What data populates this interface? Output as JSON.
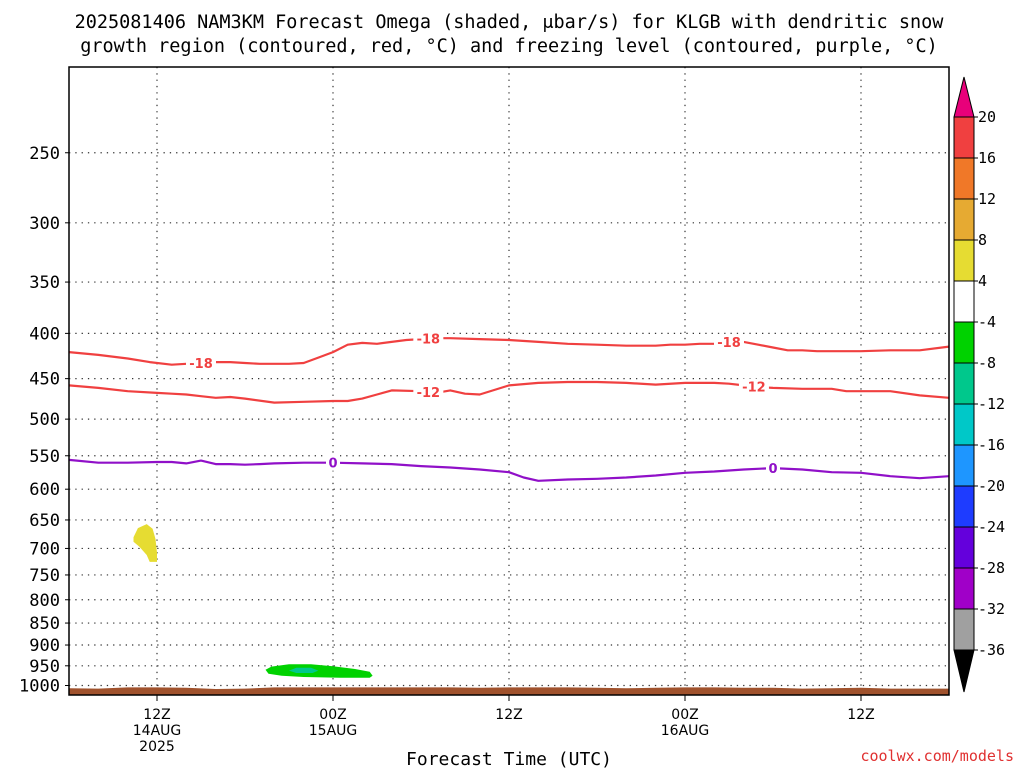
{
  "title_line1": "2025081406 NAM3KM Forecast Omega (shaded, μbar/s) for KLGB with dendritic snow",
  "title_line2": "growth region (contoured, red, °C) and freezing level (contoured, purple, °C)",
  "credit": "coolwx.com/models",
  "colors": {
    "dgz": "#f04040",
    "freezing": "#9010c8",
    "terrain": "#a0522d",
    "omega_pos_4_8": "#e6dc32",
    "omega_neg_4_8": "#00d200",
    "omega_neg_8_12": "#00c88c"
  },
  "chart_data": {
    "type": "heatmap",
    "title": "2025081406 NAM3KM Forecast Omega (shaded, μbar/s) for KLGB with dendritic snow growth region (contoured, red, °C) and freezing level (contoured, purple, °C)",
    "xlabel": "Forecast Time (UTC)",
    "ylabel": "",
    "y_scale": "log",
    "y_reversed": true,
    "y_unit": "hPa",
    "x_range_hours": [
      6,
      66
    ],
    "y_range_hpa": [
      1025,
      200
    ],
    "y_ticks": [
      250,
      300,
      350,
      400,
      450,
      500,
      550,
      600,
      650,
      700,
      750,
      800,
      850,
      900,
      950,
      1000
    ],
    "x_ticks": [
      {
        "hour": 12,
        "label": "12Z",
        "sub": [
          "14AUG",
          "2025"
        ]
      },
      {
        "hour": 24,
        "label": "00Z",
        "sub": [
          "15AUG"
        ]
      },
      {
        "hour": 36,
        "label": "12Z",
        "sub": []
      },
      {
        "hour": 48,
        "label": "00Z",
        "sub": [
          "16AUG"
        ]
      },
      {
        "hour": 60,
        "label": "12Z",
        "sub": []
      }
    ],
    "grid": true,
    "colorbar": {
      "position": "right",
      "levels": [
        "20",
        "16",
        "12",
        "8",
        "4",
        "-4",
        "-8",
        "-12",
        "-16",
        "-20",
        "-24",
        "-28",
        "-32",
        "-36"
      ],
      "colors": [
        "#e8007a",
        "#f04040",
        "#f07828",
        "#e6aa32",
        "#e6dc32",
        "#ffffff",
        "#00d200",
        "#00c88c",
        "#00c8c8",
        "#1e96ff",
        "#1e3cff",
        "#6400dc",
        "#a000c8",
        "#a0a0a0",
        "#000000"
      ]
    },
    "contours": [
      {
        "label": "-18",
        "color": "#f04040",
        "x": [
          6,
          8,
          10,
          11.5,
          13,
          14,
          16,
          17,
          18,
          19,
          20,
          21,
          22,
          23,
          24,
          25,
          26,
          27,
          29,
          31,
          32,
          34,
          36,
          38,
          40,
          42,
          44,
          46,
          47,
          48,
          49,
          50,
          51,
          52,
          53,
          54,
          55,
          56,
          57,
          58,
          59,
          60,
          62,
          64,
          66
        ],
        "y": [
          420,
          423,
          427,
          431,
          434,
          433,
          431,
          431,
          432,
          433,
          433,
          433,
          432,
          426,
          420,
          412,
          410,
          411,
          407,
          405,
          405,
          406,
          407,
          409,
          411,
          412,
          413,
          413,
          412,
          412,
          411,
          411,
          409,
          409,
          412,
          415,
          418,
          418,
          419,
          419,
          419,
          419,
          418,
          418,
          414
        ],
        "label_x": [
          15,
          30.5,
          51
        ]
      },
      {
        "label": "-12",
        "color": "#f04040",
        "x": [
          6,
          8,
          10,
          12,
          13,
          14,
          15,
          16,
          17,
          18,
          20,
          22,
          24,
          25,
          26,
          27,
          28,
          30,
          31,
          32,
          33,
          34,
          36,
          38,
          40,
          42,
          44,
          46,
          48,
          50,
          51,
          52,
          53,
          54,
          56,
          58,
          59,
          60,
          62,
          64,
          66
        ],
        "y": [
          458,
          461,
          465,
          467,
          468,
          469,
          471,
          473,
          472,
          474,
          479,
          478,
          477,
          477,
          474,
          469,
          464,
          465,
          467,
          464,
          468,
          469,
          458,
          455,
          454,
          454,
          455,
          457,
          455,
          455,
          456,
          458,
          460,
          461,
          462,
          462,
          465,
          465,
          465,
          470,
          473
        ],
        "label_x": [
          30.5,
          52.7
        ]
      },
      {
        "label": "0",
        "color": "#9010c8",
        "x": [
          6,
          8,
          10,
          12,
          13,
          14,
          15,
          16,
          17,
          18,
          19,
          20,
          22,
          24,
          26,
          28,
          30,
          32,
          34,
          36,
          37,
          38,
          40,
          42,
          44,
          46,
          48,
          50,
          52,
          54,
          56,
          58,
          60,
          62,
          64,
          66
        ],
        "y": [
          556,
          560,
          560,
          559,
          559,
          561,
          557,
          562,
          562,
          563,
          562,
          561,
          560,
          560,
          561,
          562,
          565,
          567,
          570,
          574,
          582,
          587,
          585,
          584,
          582,
          579,
          575,
          573,
          570,
          568,
          570,
          574,
          575,
          580,
          583,
          580
        ],
        "label_x": [
          24,
          54
        ]
      }
    ],
    "shaded_areas": [
      {
        "level": "4 to 8",
        "color": "#e6dc32",
        "x": [
          10.4,
          10.7,
          11.3,
          11.7,
          11.9,
          12.0,
          12.0,
          11.5,
          11.3,
          10.8,
          10.4,
          10.4
        ],
        "y": [
          680,
          664,
          657,
          665,
          683,
          708,
          725,
          725,
          712,
          697,
          688,
          680
        ]
      },
      {
        "level": "-4 to -8",
        "color": "#00d200",
        "x": [
          19.4,
          19.8,
          21.0,
          22.5,
          24.0,
          25.5,
          26.5,
          26.7,
          26.5,
          24.5,
          22.0,
          20.5,
          19.6,
          19.4
        ],
        "y": [
          960,
          952,
          946,
          946,
          951,
          958,
          965,
          975,
          980,
          980,
          978,
          975,
          970,
          960
        ]
      },
      {
        "level": "-8 to -12",
        "color": "#00c88c",
        "x": [
          21.0,
          21.5,
          22.5,
          23.0,
          22.6,
          21.5,
          21.0
        ],
        "y": [
          962,
          955,
          955,
          962,
          968,
          968,
          962
        ]
      }
    ],
    "terrain": {
      "color": "#a0522d",
      "x": [
        6,
        8,
        10,
        12,
        14,
        16,
        18,
        20,
        22,
        24,
        26,
        28,
        30,
        32,
        34,
        36,
        38,
        40,
        42,
        44,
        46,
        48,
        50,
        52,
        54,
        56,
        58,
        60,
        62,
        64,
        66
      ],
      "top_hpa": [
        1007,
        1008,
        1005,
        1005,
        1006,
        1009,
        1008,
        1005,
        1005,
        1005,
        1005,
        1005,
        1005,
        1005,
        1006,
        1005,
        1005,
        1005,
        1006,
        1007,
        1006,
        1005,
        1005,
        1006,
        1006,
        1008,
        1007,
        1006,
        1008,
        1008,
        1008
      ]
    }
  }
}
